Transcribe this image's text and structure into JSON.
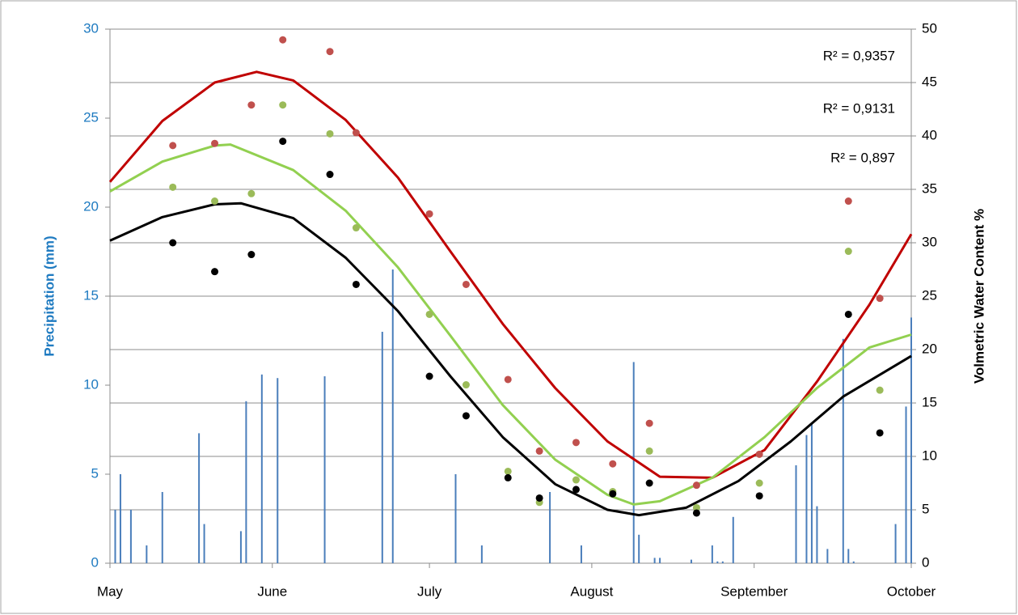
{
  "chart_data": {
    "type": "combo",
    "xlabel": null,
    "ylabel": "Precipitation (mm)",
    "y2label": "Volmetric Water Content %",
    "xlim": [
      0,
      153
    ],
    "xticks": [
      {
        "value": 0,
        "label": "May"
      },
      {
        "value": 31,
        "label": "June"
      },
      {
        "value": 61,
        "label": "July"
      },
      {
        "value": 92,
        "label": "August"
      },
      {
        "value": 123,
        "label": "September"
      },
      {
        "value": 153,
        "label": "October"
      }
    ],
    "ylim": [
      0,
      30
    ],
    "yticks": [
      0,
      5,
      10,
      15,
      20,
      25,
      30
    ],
    "y2lim": [
      0,
      50
    ],
    "y2ticks": [
      0,
      5,
      10,
      15,
      20,
      25,
      30,
      35,
      40,
      45,
      50
    ],
    "grid": "y2",
    "annotations": [
      "R² = 0,9357",
      "R² = 0,9131",
      "R² = 0,897"
    ],
    "series": [
      {
        "type": "bar",
        "axis": "y",
        "color": "#4a7ebb",
        "x": [
          1,
          2,
          4,
          7,
          10,
          17,
          18,
          25,
          26,
          29,
          32,
          41,
          52,
          54,
          66,
          71,
          84,
          90,
          100,
          101,
          104,
          105,
          111,
          115,
          116,
          117,
          119,
          131,
          133,
          134,
          135,
          137,
          140,
          141,
          142,
          150,
          152,
          153
        ],
        "values": [
          3,
          5,
          3,
          1,
          4,
          7.3,
          2.2,
          1.8,
          9.1,
          10.6,
          10.4,
          10.5,
          13,
          16.5,
          5,
          1,
          4,
          1,
          11.3,
          1.6,
          0.3,
          0.3,
          0.2,
          1,
          0.1,
          0.1,
          2.6,
          5.5,
          7.2,
          7.9,
          3.2,
          0.8,
          12.6,
          0.8,
          0.1,
          2.2,
          8.8,
          13.8
        ]
      },
      {
        "type": "line",
        "axis": "y2",
        "color": "#c00000",
        "x": [
          0,
          10,
          20,
          28,
          35,
          45,
          55,
          65,
          75,
          85,
          95,
          105,
          115,
          125,
          135,
          145,
          153
        ],
        "values": [
          35.7,
          41.4,
          45.0,
          46.0,
          45.2,
          41.5,
          36.1,
          29.2,
          22.4,
          16.4,
          11.4,
          8.1,
          8.0,
          10.6,
          17.0,
          24.2,
          30.8
        ]
      },
      {
        "type": "line",
        "axis": "y2",
        "color": "#92d050",
        "x": [
          0,
          10,
          20,
          23,
          35,
          45,
          55,
          65,
          75,
          85,
          95,
          100,
          105,
          115,
          125,
          135,
          145,
          153
        ],
        "values": [
          34.8,
          37.6,
          39.1,
          39.2,
          36.8,
          33.0,
          27.7,
          21.3,
          14.8,
          9.7,
          6.4,
          5.5,
          5.8,
          8.0,
          11.8,
          16.4,
          20.2,
          21.4
        ]
      },
      {
        "type": "line",
        "axis": "y2",
        "color": "#000000",
        "x": [
          0,
          10,
          20,
          25,
          35,
          45,
          55,
          65,
          75,
          85,
          95,
          101,
          110,
          120,
          130,
          140,
          153
        ],
        "values": [
          30.2,
          32.4,
          33.6,
          33.7,
          32.3,
          28.6,
          23.6,
          17.5,
          11.8,
          7.4,
          5.0,
          4.5,
          5.2,
          7.7,
          11.4,
          15.6,
          19.4
        ]
      },
      {
        "type": "scatter",
        "axis": "y2",
        "color": "#c0504d",
        "x": [
          12,
          20,
          27,
          33,
          42,
          47,
          61,
          68,
          76,
          82,
          89,
          96,
          103,
          112,
          124,
          141,
          147
        ],
        "values": [
          39.1,
          39.3,
          42.9,
          49.0,
          47.9,
          40.3,
          32.7,
          26.1,
          17.2,
          10.5,
          11.3,
          9.3,
          13.1,
          7.3,
          10.2,
          33.9,
          24.8
        ]
      },
      {
        "type": "scatter",
        "axis": "y2",
        "color": "#9bbb59",
        "x": [
          12,
          20,
          27,
          33,
          42,
          47,
          61,
          68,
          76,
          82,
          89,
          96,
          103,
          112,
          124,
          141,
          147
        ],
        "values": [
          35.2,
          33.9,
          34.6,
          42.9,
          40.2,
          31.4,
          23.3,
          16.7,
          8.6,
          5.7,
          7.8,
          6.7,
          10.5,
          5.2,
          7.5,
          29.2,
          16.2
        ]
      },
      {
        "type": "scatter",
        "axis": "y2",
        "color": "#000000",
        "x": [
          12,
          20,
          27,
          33,
          42,
          47,
          61,
          68,
          76,
          82,
          89,
          96,
          103,
          112,
          124,
          141,
          147
        ],
        "values": [
          30.0,
          27.3,
          28.9,
          39.5,
          36.4,
          26.1,
          17.5,
          13.8,
          8.0,
          6.1,
          6.9,
          6.5,
          7.5,
          4.7,
          6.3,
          23.3,
          12.2
        ]
      }
    ]
  }
}
